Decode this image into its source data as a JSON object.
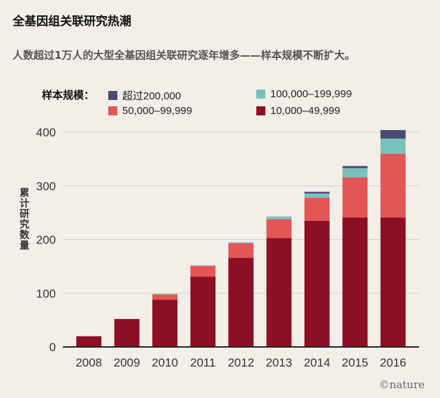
{
  "title": "全基因组关联研究热潮",
  "subtitle": "人数超过1万人的大型全基因组关联研究逐年增多——样本规模不断扩大。",
  "legend": {
    "title": "样本规模：",
    "items": [
      {
        "label": "超过200,000",
        "color": "#4a4a72"
      },
      {
        "label": "100,000–199,999",
        "color": "#78c2bd"
      },
      {
        "label": "50,000–99,999",
        "color": "#e45556"
      },
      {
        "label": "10,000–49,999",
        "color": "#8c0f24"
      }
    ]
  },
  "brand": "©nature",
  "chart_data": {
    "type": "bar",
    "stacked": true,
    "categories": [
      "2008",
      "2009",
      "2010",
      "2011",
      "2012",
      "2013",
      "2014",
      "2015",
      "2016"
    ],
    "ylabel": "累计研究数量",
    "ylim": [
      0,
      400
    ],
    "yticks": [
      0,
      100,
      200,
      300,
      400
    ],
    "grid": true,
    "series": [
      {
        "name": "10,000–49,999",
        "color": "#8c0f24",
        "values": [
          20,
          52,
          88,
          131,
          166,
          203,
          235,
          241,
          241
        ]
      },
      {
        "name": "50,000–99,999",
        "color": "#e45556",
        "values": [
          0,
          0,
          10,
          20,
          27,
          35,
          43,
          75,
          119
        ]
      },
      {
        "name": "100,000–199,999",
        "color": "#78c2bd",
        "values": [
          0,
          0,
          1,
          1,
          2,
          5,
          8,
          17,
          28
        ]
      },
      {
        "name": "超过200,000",
        "color": "#4a4a72",
        "values": [
          0,
          0,
          0,
          0,
          0,
          0,
          3,
          4,
          16
        ]
      }
    ]
  }
}
